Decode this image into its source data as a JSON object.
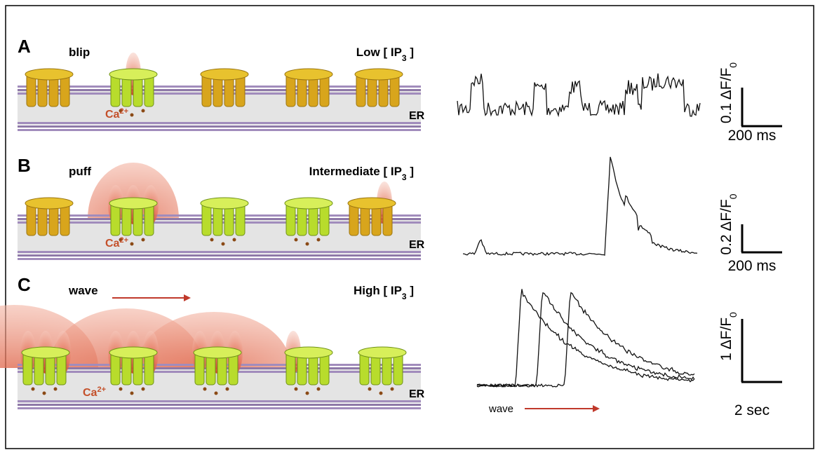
{
  "panels": [
    {
      "letter": "A",
      "event": "blip",
      "condition": "Low [ IP",
      "condition_sub": "3",
      "condition_end": " ]",
      "ion": "Ca",
      "ion_sup": "2+",
      "membrane": "ER",
      "scale_y": "0.1 ΔF/F",
      "scale_y_sub": "0",
      "scale_x": "200 ms"
    },
    {
      "letter": "B",
      "event": "puff",
      "condition": "Intermediate [ IP",
      "condition_sub": "3",
      "condition_end": " ]",
      "ion": "Ca",
      "ion_sup": "2+",
      "membrane": "ER",
      "scale_y": "0.2 ΔF/F",
      "scale_y_sub": "0",
      "scale_x": "200 ms"
    },
    {
      "letter": "C",
      "event": "wave",
      "condition": "High [ IP",
      "condition_sub": "3",
      "condition_end": " ]",
      "ion": "Ca",
      "ion_sup": "2+",
      "membrane": "ER",
      "scale_y": "1 ΔF/F",
      "scale_y_sub": "0",
      "scale_x": "2 sec",
      "trace_label": "wave"
    }
  ]
}
